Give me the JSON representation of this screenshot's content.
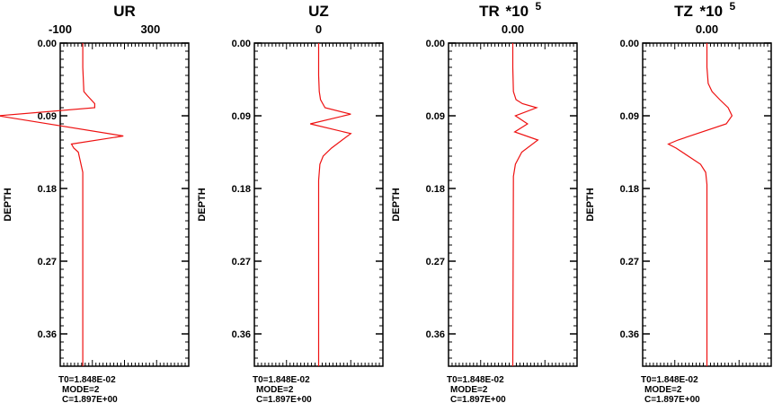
{
  "chart_data": [
    {
      "type": "line",
      "title": "UR",
      "title_suffix": "",
      "title_exponent": "",
      "top_tick_labels": [
        "-100",
        "300"
      ],
      "top_tick_values": [
        -100,
        300
      ],
      "xlim": [
        -100,
        470
      ],
      "ylabel": "DEPTH",
      "ylim": [
        0.0,
        0.4
      ],
      "y_ticks": [
        0.0,
        0.09,
        0.18,
        0.27,
        0.36
      ],
      "y_tick_labels": [
        "0.00",
        "0.09",
        "0.18",
        "0.27",
        "0.36"
      ],
      "line_color": "#ee1111",
      "series": [
        {
          "x": [
            0,
            0,
            5,
            20,
            53,
            53,
            -375,
            180,
            -50,
            -40,
            -20,
            0,
            0
          ],
          "y": [
            0.0,
            0.03,
            0.06,
            0.065,
            0.075,
            0.08,
            0.09,
            0.115,
            0.125,
            0.13,
            0.135,
            0.16,
            0.4
          ]
        }
      ],
      "footer": [
        "T0=1.848E-02",
        "MODE=2",
        "C=1.897E+00"
      ]
    },
    {
      "type": "line",
      "title": "UZ",
      "title_suffix": "",
      "title_exponent": "",
      "top_tick_labels": [
        "0"
      ],
      "top_tick_values": [
        0
      ],
      "xlim": [
        -1,
        1
      ],
      "ylabel": "DEPTH",
      "ylim": [
        0.0,
        0.4
      ],
      "y_ticks": [
        0.0,
        0.09,
        0.18,
        0.27,
        0.36
      ],
      "y_tick_labels": [
        "0.00",
        "0.09",
        "0.18",
        "0.27",
        "0.36"
      ],
      "line_color": "#ee1111",
      "series": [
        {
          "x": [
            0,
            0,
            0.01,
            0.03,
            0.1,
            0.5,
            -0.13,
            0.5,
            0.2,
            0.07,
            0.02,
            0.0,
            0
          ],
          "y": [
            0.0,
            0.04,
            0.06,
            0.07,
            0.08,
            0.088,
            0.1,
            0.112,
            0.13,
            0.14,
            0.15,
            0.17,
            0.4
          ]
        }
      ],
      "footer": [
        "T0=1.848E-02",
        "MODE=2",
        "C=1.897E+00"
      ]
    },
    {
      "type": "line",
      "title": "TR",
      "title_suffix": "*10",
      "title_exponent": "5",
      "top_tick_labels": [
        "0.00"
      ],
      "top_tick_values": [
        0
      ],
      "xlim": [
        -1,
        1
      ],
      "ylabel": "DEPTH",
      "ylim": [
        0.0,
        0.4
      ],
      "y_ticks": [
        0.0,
        0.09,
        0.18,
        0.27,
        0.36
      ],
      "y_tick_labels": [
        "0.00",
        "0.09",
        "0.18",
        "0.27",
        "0.36"
      ],
      "line_color": "#ee1111",
      "series": [
        {
          "x": [
            0,
            0,
            0.01,
            0.05,
            0.15,
            0.37,
            0.04,
            0.23,
            0.03,
            0.39,
            0.14,
            0.04,
            0.01,
            0
          ],
          "y": [
            0.0,
            0.03,
            0.06,
            0.07,
            0.075,
            0.08,
            0.09,
            0.1,
            0.11,
            0.12,
            0.135,
            0.15,
            0.165,
            0.4
          ]
        }
      ],
      "footer": [
        "T0=1.848E-02",
        "MODE=2",
        "C=1.897E+00"
      ]
    },
    {
      "type": "line",
      "title": "TZ",
      "title_suffix": "*10",
      "title_exponent": "5",
      "top_tick_labels": [
        "0.00"
      ],
      "top_tick_values": [
        0
      ],
      "xlim": [
        -1,
        1
      ],
      "ylabel": "DEPTH",
      "ylim": [
        0.0,
        0.4
      ],
      "y_ticks": [
        0.0,
        0.09,
        0.18,
        0.27,
        0.36
      ],
      "y_tick_labels": [
        "0.00",
        "0.09",
        "0.18",
        "0.27",
        "0.36"
      ],
      "line_color": "#ee1111",
      "series": [
        {
          "x": [
            0,
            0,
            0.02,
            0.08,
            0.2,
            0.33,
            0.39,
            0.3,
            -0.45,
            -0.6,
            -0.48,
            -0.1,
            -0.02,
            0,
            0
          ],
          "y": [
            0.0,
            0.03,
            0.05,
            0.06,
            0.07,
            0.08,
            0.09,
            0.1,
            0.12,
            0.125,
            0.13,
            0.15,
            0.16,
            0.175,
            0.4
          ]
        }
      ],
      "footer": [
        "T0=1.848E-02",
        "MODE=2",
        "C=1.897E+00"
      ]
    }
  ]
}
